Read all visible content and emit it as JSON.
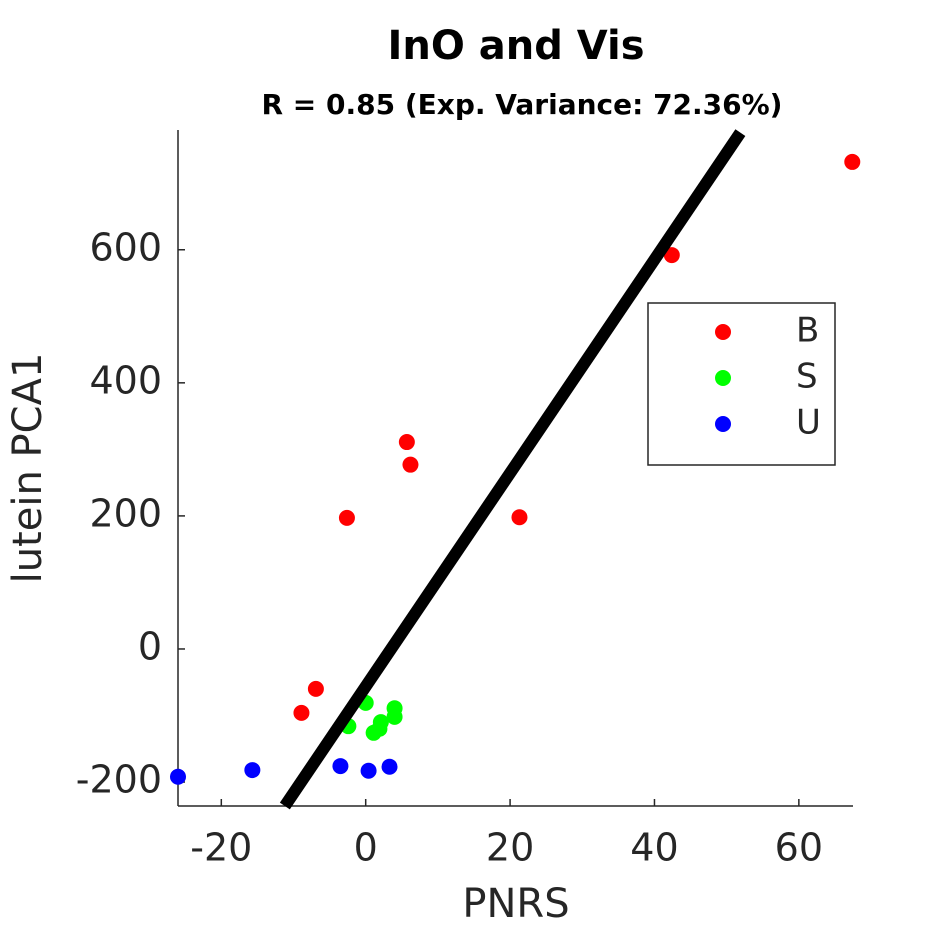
{
  "chart_data": {
    "type": "scatter",
    "title": "InO and Vis",
    "subtitle": "R = 0.85 (Exp. Variance: 72.36%)",
    "x_label": "PNRS",
    "y_label": "lutein PCA1",
    "xlim": [
      -26,
      67.5
    ],
    "ylim": [
      -236,
      780
    ],
    "xticks": [
      -20,
      0,
      20,
      40,
      60
    ],
    "yticks": [
      -200,
      0,
      200,
      400,
      600
    ],
    "legend_position": "east",
    "series": [
      {
        "name": "B",
        "color": "#ff0000",
        "x": [
          67.4,
          42.4,
          5.7,
          6.2,
          -2.6,
          21.3,
          -6.9,
          -8.9
        ],
        "values": [
          732,
          592,
          311,
          277,
          197,
          198,
          -60,
          -96
        ]
      },
      {
        "name": "S",
        "color": "#00ff00",
        "x": [
          0,
          -2.4,
          4.0,
          4.0,
          2.1,
          1.1,
          1.9
        ],
        "values": [
          -81,
          -116,
          -89,
          -102,
          -110,
          -126,
          -120
        ]
      },
      {
        "name": "U",
        "color": "#0000ff",
        "x": [
          -26,
          -15.7,
          -3.5,
          0.4,
          3.3
        ],
        "values": [
          -192,
          -182,
          -176,
          -183,
          -177
        ]
      }
    ],
    "fit_line": {
      "color": "#000000",
      "x": [
        -11.2,
        51.9
      ],
      "values": [
        -236,
        776
      ]
    }
  }
}
